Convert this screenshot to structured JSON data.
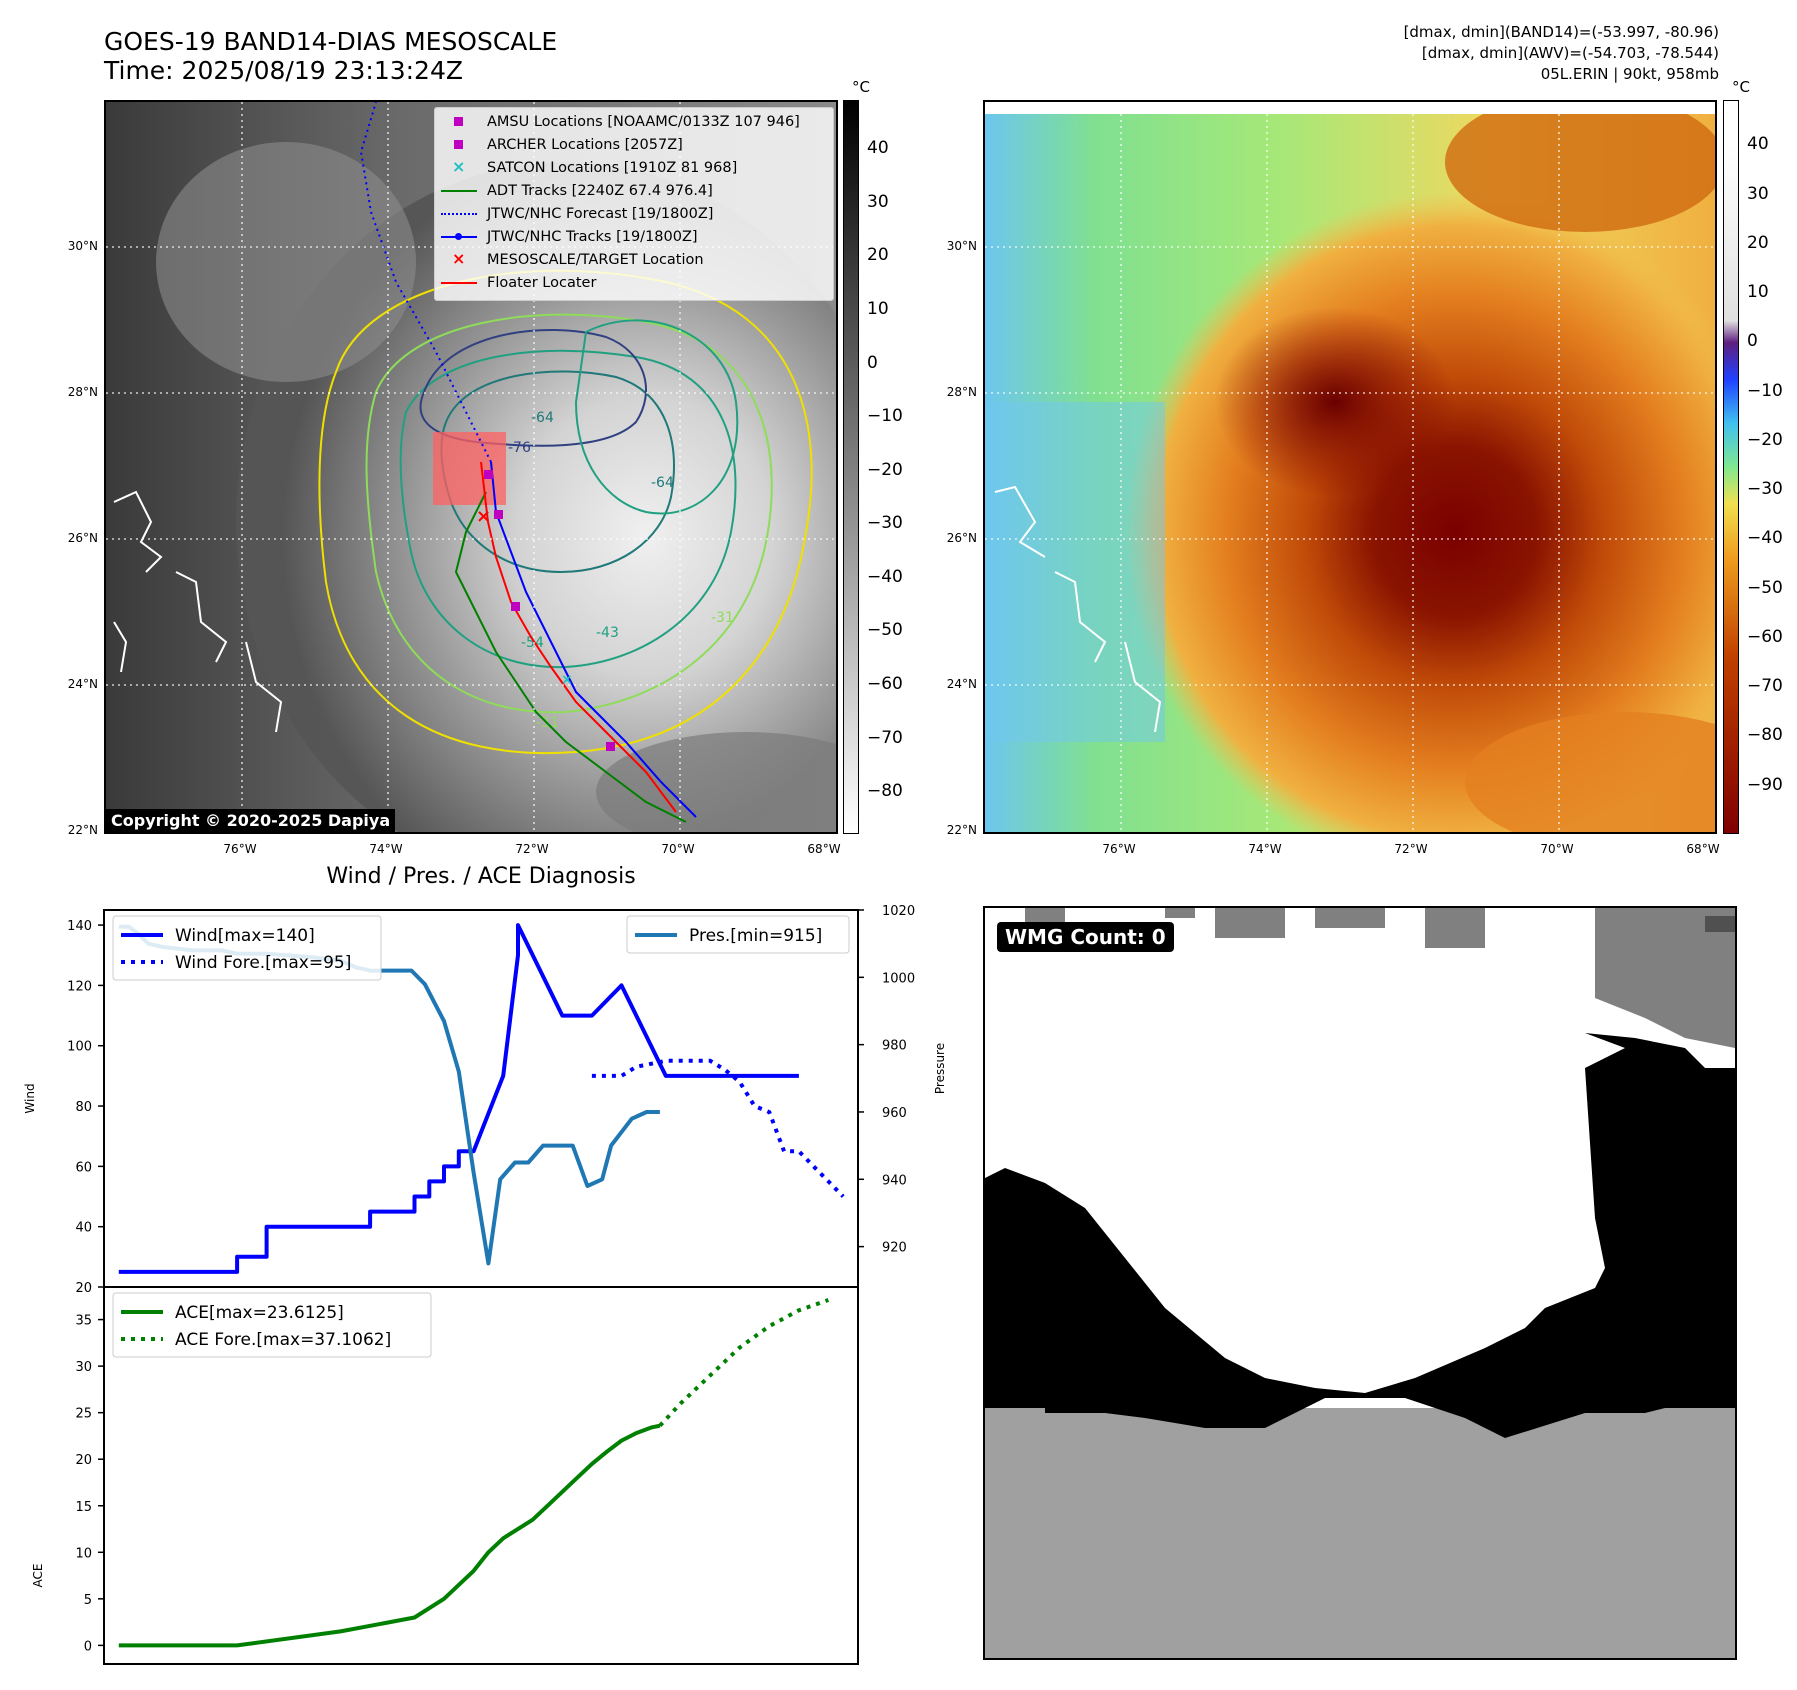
{
  "header": {
    "title_line1": "GOES-19 BAND14-DIAS MESOSCALE",
    "title_line2": "Time: 2025/08/19 23:13:24Z",
    "info_line1": "[dmax, dmin](BAND14)=(-53.997, -80.96)",
    "info_line2": "[dmax, dmin](AWV)=(-54.703, -78.544)",
    "info_line3": "05L.ERIN | 90kt, 958mb"
  },
  "maps": {
    "lat_labels": [
      "30°N",
      "28°N",
      "26°N",
      "24°N",
      "22°N"
    ],
    "lon_labels": [
      "76°W",
      "74°W",
      "72°W",
      "70°W",
      "68°W"
    ],
    "unit": "°C",
    "copyright": "Copyright © 2020-2025 Dapiya",
    "colorbar_left_ticks": [
      "40",
      "30",
      "20",
      "10",
      "0",
      "−10",
      "−20",
      "−30",
      "−40",
      "−50",
      "−60",
      "−70",
      "−80"
    ],
    "colorbar_right_ticks": [
      "40",
      "30",
      "20",
      "10",
      "0",
      "−10",
      "−20",
      "−30",
      "−40",
      "−50",
      "−60",
      "−70",
      "−80",
      "−90"
    ],
    "legend": [
      {
        "label": "AMSU Locations [NOAAMC/0133Z 107 946]",
        "color": "#c000c0",
        "marker": "square"
      },
      {
        "label": "ARCHER Locations [2057Z]",
        "color": "#c000c0",
        "marker": "square"
      },
      {
        "label": "SATCON Locations [1910Z 81 968]",
        "color": "#20c0c0",
        "marker": "x"
      },
      {
        "label": "ADT Tracks [2240Z 67.4 976.4]",
        "color": "#008000",
        "marker": "line"
      },
      {
        "label": "JTWC/NHC Forecast [19/1800Z]",
        "color": "#0000ff",
        "marker": "dotted"
      },
      {
        "label": "JTWC/NHC Tracks [19/1800Z]",
        "color": "#0000ff",
        "marker": "line-dot"
      },
      {
        "label": "MESOSCALE/TARGET Location",
        "color": "#ff0000",
        "marker": "x"
      },
      {
        "label": "Floater Locater",
        "color": "#ff0000",
        "marker": "line"
      }
    ],
    "contour_labels": [
      "-76",
      "-64",
      "-64",
      "-31",
      "-31",
      "-54",
      "-43"
    ]
  },
  "diagnosis": {
    "title": "Wind / Pres. / ACE Diagnosis",
    "wmg_label": "WMG Count: 0"
  },
  "chart_data": [
    {
      "type": "line",
      "title": "Wind / Pres. / ACE Diagnosis",
      "ylabel": "Wind",
      "y2label": "Pressure",
      "ylim": [
        20,
        145
      ],
      "y2lim": [
        908,
        1020
      ],
      "yticks": [
        20,
        40,
        60,
        80,
        100,
        120,
        140
      ],
      "y2ticks": [
        920,
        940,
        960,
        980,
        1000,
        1020
      ],
      "series": [
        {
          "name": "Wind[max=140]",
          "axis": "left",
          "color": "#0000ff",
          "style": "solid",
          "x": [
            0,
            5,
            5,
            8,
            8,
            10,
            10,
            14,
            14,
            17,
            17,
            19,
            19,
            20,
            20,
            21,
            21,
            22,
            22,
            23,
            23,
            24,
            26,
            27,
            27,
            30,
            30,
            32,
            34,
            34,
            37,
            37,
            39,
            41,
            41,
            42,
            43,
            46
          ],
          "values": [
            25,
            25,
            25,
            25,
            30,
            30,
            40,
            40,
            40,
            40,
            45,
            45,
            45,
            45,
            50,
            50,
            55,
            55,
            60,
            60,
            65,
            65,
            90,
            130,
            140,
            110,
            110,
            110,
            120,
            120,
            90,
            90,
            90,
            90,
            90,
            90,
            90,
            90
          ]
        },
        {
          "name": "Wind Fore.[max=95]",
          "axis": "left",
          "color": "#0000ff",
          "style": "dotted",
          "x": [
            32,
            34,
            35,
            37,
            38,
            40,
            41,
            42,
            43,
            44,
            45,
            46,
            47,
            48,
            49
          ],
          "values": [
            90,
            90,
            93,
            95,
            95,
            95,
            92,
            88,
            80,
            78,
            65,
            65,
            60,
            55,
            50
          ]
        },
        {
          "name": "Pres.[min=915]",
          "axis": "right",
          "color": "#1f77b4",
          "style": "solid",
          "x": [
            0,
            0.7,
            1.3,
            2,
            3,
            5,
            7,
            8,
            10,
            13,
            15,
            16,
            17,
            19,
            19.8,
            20.7,
            22,
            23,
            24,
            25,
            25.8,
            26.8,
            27.7,
            28.7,
            29.3,
            30.7,
            31.7,
            32.7,
            33.3,
            34.7,
            35.7,
            36.6
          ],
          "values": [
            1015,
            1015,
            1013,
            1010,
            1009,
            1008,
            1008,
            1007,
            1007,
            1006,
            1005,
            1003,
            1002,
            1002,
            1002,
            998,
            987,
            972,
            942,
            915,
            940,
            945,
            945,
            950,
            950,
            950,
            938,
            940,
            950,
            958,
            960,
            960
          ]
        },
        {
          "name": "ACE[max=23.6125]",
          "axis": "bottom",
          "color": "#008000",
          "style": "solid",
          "x": [
            0,
            8,
            15,
            20,
            22,
            24,
            25,
            26,
            28,
            29,
            30,
            31,
            32,
            33,
            34,
            35,
            36,
            36.6
          ],
          "values": [
            0,
            0,
            1.5,
            3,
            5,
            8,
            10,
            11.5,
            13.5,
            15,
            16.5,
            18,
            19.5,
            20.8,
            22,
            22.8,
            23.4,
            23.6
          ]
        },
        {
          "name": "ACE Fore.[max=37.1062]",
          "axis": "bottom",
          "color": "#008000",
          "style": "dotted",
          "x": [
            36.6,
            38,
            40,
            42,
            44,
            46,
            48
          ],
          "values": [
            23.6,
            26,
            29,
            32,
            34.3,
            36,
            37.1
          ]
        }
      ],
      "legend": [
        "Wind[max=140]",
        "Wind Fore.[max=95]",
        "Pres.[min=915]"
      ],
      "ace_ylabel": "ACE",
      "ace_ylim": [
        -2,
        38.5
      ],
      "ace_yticks": [
        0,
        5,
        10,
        15,
        20,
        25,
        30,
        35
      ],
      "ace_legend": [
        "ACE[max=23.6125]",
        "ACE Fore.[max=37.1062]"
      ]
    }
  ]
}
